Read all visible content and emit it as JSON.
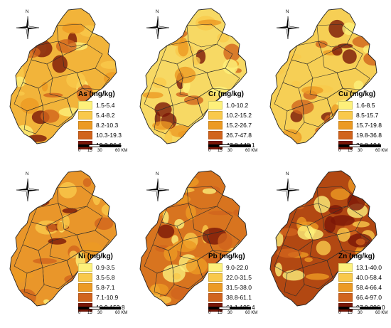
{
  "panels": [
    {
      "id": "as",
      "title": "As (mg/kg)",
      "classes": [
        "1.5-5.4",
        "5.4-8.2",
        "8.2-10.3",
        "10.3-19.3",
        "19.3-96.6"
      ],
      "colors": [
        "#fdf07a",
        "#f9c94b",
        "#ec9a23",
        "#d1641d",
        "#7a1708"
      ],
      "base_color": "#f2b43a",
      "scale": [
        "0",
        "15",
        "30",
        "60 KM"
      ]
    },
    {
      "id": "cr",
      "title": "Cr (mg/kg)",
      "classes": [
        "1.0-10.2",
        "10.2-15.2",
        "15.2-26.7",
        "26.7-47.8",
        "47.8-148.1"
      ],
      "colors": [
        "#fdf07a",
        "#f9c94b",
        "#ec9a23",
        "#d1641d",
        "#7a1708"
      ],
      "base_color": "#f7d964",
      "scale": [
        "0",
        "15",
        "30",
        "60 KM"
      ]
    },
    {
      "id": "cu",
      "title": "Cu (mg/kg)",
      "classes": [
        "1.6-8.5",
        "8.5-15.7",
        "15.7-19.8",
        "19.8-36.8",
        "36.8-194"
      ],
      "colors": [
        "#fdf07a",
        "#f9c94b",
        "#ec9a23",
        "#d1641d",
        "#7a1708"
      ],
      "base_color": "#f6cf55",
      "scale": [
        "0",
        "15",
        "30",
        "60 KM"
      ]
    },
    {
      "id": "ni",
      "title": "Ni (mg/kg)",
      "classes": [
        "0.9-3.5",
        "3.5-5.8",
        "5.8-7.1",
        "7.1-10.9",
        "10.9-153.8"
      ],
      "colors": [
        "#fdf07a",
        "#f9c94b",
        "#ec9a23",
        "#d1641d",
        "#7a1708"
      ],
      "base_color": "#e9962a",
      "scale": [
        "0",
        "15",
        "30",
        "60 KM"
      ]
    },
    {
      "id": "pb",
      "title": "Pb (mg/kg)",
      "classes": [
        "9.0-22.0",
        "22.0-31.5",
        "31.5-38.0",
        "38.8-61.1",
        "61.1-195.4"
      ],
      "colors": [
        "#fdf07a",
        "#f9c94b",
        "#ec9a23",
        "#d1641d",
        "#7a1708"
      ],
      "base_color": "#d8741f",
      "scale": [
        "0",
        "15",
        "30",
        "60 KM"
      ]
    },
    {
      "id": "zn",
      "title": "Zn (mg/kg)",
      "classes": [
        "13.1-40.0",
        "40.0-58.4",
        "58.4-66.4",
        "66.4-97.0",
        "97.0-296.0"
      ],
      "colors": [
        "#fdf07a",
        "#f9c94b",
        "#ec9a23",
        "#d1641d",
        "#7a1708"
      ],
      "base_color": "#b24812",
      "scale": [
        "0",
        "15",
        "30",
        "60 KM"
      ]
    }
  ],
  "north_label": "N"
}
